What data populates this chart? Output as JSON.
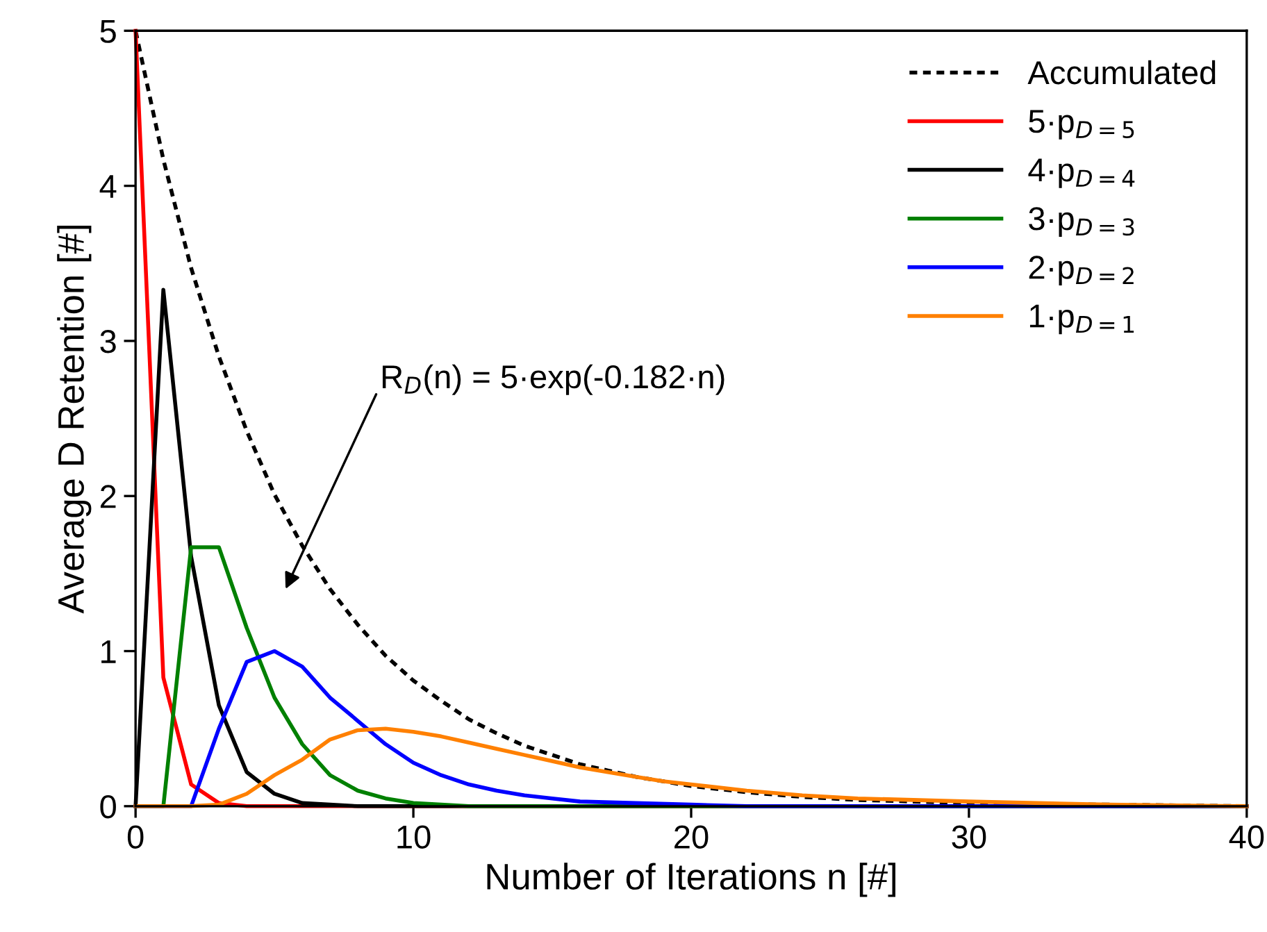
{
  "chart_data": {
    "type": "line",
    "xlabel": "Number of Iterations n [#]",
    "ylabel": "Average D Retention [#]",
    "xlim": [
      0,
      40
    ],
    "ylim": [
      0,
      5
    ],
    "xticks": [
      0,
      10,
      20,
      30,
      40
    ],
    "yticks": [
      0,
      1,
      2,
      3,
      4,
      5
    ],
    "grid": false,
    "legend": "top right",
    "marker": "none",
    "series": [
      {
        "name": "Accumulated",
        "color": "#000000",
        "line_style": "dotted",
        "x": [
          0,
          1,
          2,
          3,
          4,
          5,
          6,
          7,
          8,
          9,
          10,
          11,
          12,
          13,
          14,
          15,
          16,
          17,
          18,
          19,
          20,
          22,
          24,
          26,
          28,
          30,
          35,
          40
        ],
        "values": [
          5,
          4.17,
          3.47,
          2.9,
          2.42,
          2.01,
          1.68,
          1.4,
          1.17,
          0.97,
          0.81,
          0.68,
          0.56,
          0.47,
          0.39,
          0.33,
          0.27,
          0.23,
          0.19,
          0.16,
          0.13,
          0.09,
          0.06,
          0.04,
          0.03,
          0.02,
          0.01,
          0
        ]
      },
      {
        "name": "5·p$_{D=5}$",
        "color": "#ff0000",
        "x": [
          0,
          1,
          2,
          3,
          4,
          40
        ],
        "values": [
          5,
          0.83,
          0.14,
          0.02,
          0,
          0
        ]
      },
      {
        "name": "4·p$_{D=4}$",
        "color": "#000000",
        "x": [
          0,
          1,
          2,
          3,
          4,
          5,
          6,
          7,
          8,
          40
        ],
        "values": [
          0,
          3.33,
          1.61,
          0.65,
          0.22,
          0.08,
          0.02,
          0.01,
          0,
          0
        ]
      },
      {
        "name": "3·p$_{D=3}$",
        "color": "#008000",
        "x": [
          0,
          1,
          2,
          3,
          4,
          5,
          6,
          7,
          8,
          9,
          10,
          11,
          12,
          40
        ],
        "values": [
          0,
          0,
          1.67,
          1.67,
          1.15,
          0.7,
          0.4,
          0.2,
          0.1,
          0.05,
          0.02,
          0.01,
          0,
          0
        ]
      },
      {
        "name": "2·p$_{D=2}$",
        "color": "#0000ff",
        "x": [
          0,
          1,
          2,
          3,
          4,
          5,
          6,
          7,
          8,
          9,
          10,
          11,
          12,
          13,
          14,
          15,
          16,
          18,
          20,
          22,
          40
        ],
        "values": [
          0,
          0,
          0,
          0.5,
          0.93,
          1.0,
          0.9,
          0.7,
          0.55,
          0.4,
          0.28,
          0.2,
          0.14,
          0.1,
          0.07,
          0.05,
          0.03,
          0.02,
          0.01,
          0,
          0
        ]
      },
      {
        "name": "1·p$_{D=1}$",
        "color": "#ff8000",
        "x": [
          0,
          1,
          2,
          3,
          4,
          5,
          6,
          7,
          8,
          9,
          10,
          11,
          12,
          13,
          14,
          15,
          16,
          17,
          18,
          19,
          20,
          22,
          24,
          26,
          28,
          30,
          35,
          40
        ],
        "values": [
          0,
          0,
          0,
          0.01,
          0.08,
          0.2,
          0.3,
          0.43,
          0.49,
          0.5,
          0.48,
          0.45,
          0.41,
          0.37,
          0.33,
          0.29,
          0.25,
          0.22,
          0.19,
          0.16,
          0.14,
          0.1,
          0.07,
          0.05,
          0.04,
          0.03,
          0.01,
          0
        ]
      }
    ],
    "annotations": [
      "R$_{D}$(n) = 5·exp(-0.182·n)"
    ]
  }
}
